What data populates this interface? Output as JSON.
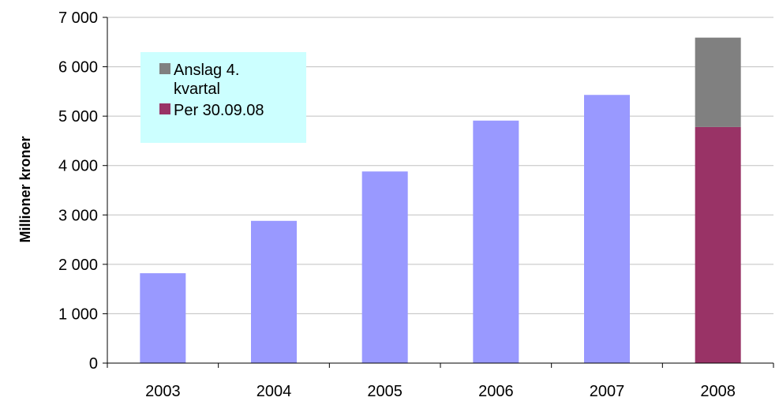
{
  "chart_data": {
    "type": "bar",
    "stacked": true,
    "categories": [
      "2003",
      "2004",
      "2005",
      "2006",
      "2007",
      "2008"
    ],
    "ylabel": "Millioner kroner",
    "xlabel": "",
    "title": "",
    "ylim": [
      0,
      7000
    ],
    "yticks": [
      0,
      1000,
      2000,
      3000,
      4000,
      5000,
      6000,
      7000
    ],
    "ytick_labels": [
      "0",
      "1 000",
      "2 000",
      "3 000",
      "4 000",
      "5 000",
      "6 000",
      "7 000"
    ],
    "grid": true,
    "legend_position": "top-left",
    "series": [
      {
        "name": "",
        "color": "#9999ff",
        "values": [
          1820,
          2880,
          3880,
          4910,
          5430,
          null
        ]
      },
      {
        "name": "Per 30.09.08",
        "color": "#993366",
        "values": [
          null,
          null,
          null,
          null,
          null,
          4780
        ]
      },
      {
        "name": "Anslag 4. kvartal",
        "color": "#808080",
        "values": [
          null,
          null,
          null,
          null,
          null,
          1810
        ]
      }
    ],
    "legend": {
      "background": "#ccffff",
      "entries": [
        {
          "label_lines": [
            "Anslag 4.",
            "kvartal"
          ],
          "color": "#808080"
        },
        {
          "label_lines": [
            "Per 30.09.08"
          ],
          "color": "#993366"
        }
      ]
    }
  }
}
